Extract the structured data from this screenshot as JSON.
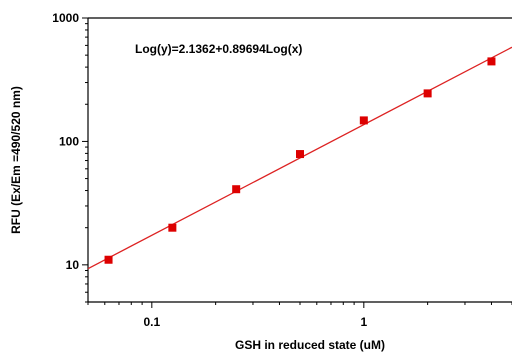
{
  "chart_data": {
    "type": "scatter",
    "title": "",
    "xlabel": "GSH in reduced state  (uM)",
    "ylabel": "RFU (Ex/Em =490/520 nm)",
    "xscale": "log",
    "yscale": "log",
    "xlim": [
      0.05,
      5.0
    ],
    "ylim": [
      5,
      1000
    ],
    "xticks": [
      {
        "value": 0.1,
        "label": "0.1"
      },
      {
        "value": 1,
        "label": "1"
      }
    ],
    "yticks": [
      {
        "value": 10,
        "label": "10"
      },
      {
        "value": 100,
        "label": "100"
      },
      {
        "value": 1000,
        "label": "1000"
      }
    ],
    "annotation": "Log(y)=2.1362+0.89694Log(x)",
    "fit": {
      "intercept": 2.1362,
      "slope": 0.89694,
      "color": "#dd2222"
    },
    "marker_color": "#dd0000",
    "grid": false,
    "series": [
      {
        "x": [
          0.0625,
          0.125,
          0.25,
          0.5,
          1,
          2,
          4
        ],
        "y": [
          11,
          20,
          41,
          79,
          148,
          245,
          445
        ]
      }
    ]
  }
}
